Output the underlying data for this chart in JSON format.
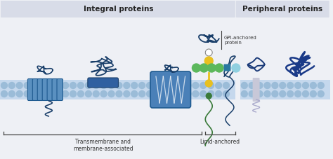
{
  "bg_color": "#eef0f5",
  "integral_header_color": "#d8dce8",
  "peripheral_header_color": "#d8dce8",
  "integral_header_text": "Integral proteins",
  "peripheral_header_text": "Peripheral proteins",
  "membrane_color": "#c5d8ed",
  "membrane_dot_color": "#9bbcd8",
  "dark_blue": "#1a3f6a",
  "medium_blue": "#2060a0",
  "steel_blue": "#4a7fb5",
  "light_blue_fill": "#7aaecc",
  "green_bright": "#5cb85c",
  "green_dark": "#3a7a3a",
  "yellow_gold": "#e8c020",
  "cyan_light": "#90d0e0",
  "label_transmembrane": "Transmembrane and\nmembrane-associated",
  "label_lipid": "Lipid-anchored",
  "label_gpi": "GPI-anchored\nprotein",
  "font_size_header": 7.5,
  "font_size_label": 5.5,
  "font_size_gpi": 5.0
}
